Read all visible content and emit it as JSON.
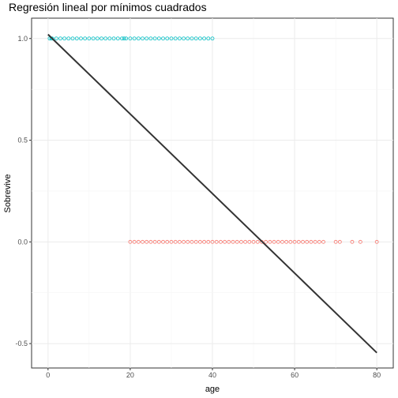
{
  "chart_data": {
    "type": "scatter",
    "title": "Regresión lineal por mínimos cuadrados",
    "xlabel": "age",
    "ylabel": "Sobrevive",
    "xlim": [
      -4,
      84
    ],
    "ylim": [
      -0.62,
      1.1
    ],
    "x_ticks": [
      0,
      20,
      40,
      60,
      80
    ],
    "y_ticks": [
      -0.5,
      0.0,
      0.5,
      1.0
    ],
    "y_tick_labels": [
      "-0.5",
      "0.0",
      "0.5",
      "1.0"
    ],
    "grid": true,
    "legend": "none",
    "series": [
      {
        "color": "#00bfc4",
        "x": [
          0.4,
          0.8,
          1,
          2,
          3,
          4,
          5,
          6,
          7,
          8,
          9,
          10,
          11,
          12,
          13,
          14,
          15,
          16,
          17,
          18,
          18.5,
          19,
          20,
          21,
          22,
          23,
          24,
          25,
          26,
          27,
          28,
          29,
          30,
          31,
          32,
          33,
          34,
          35,
          36,
          37,
          38,
          39,
          40
        ],
        "y": 1
      },
      {
        "color": "#f8766d",
        "x": [
          20,
          21,
          22,
          23,
          24,
          25,
          26,
          27,
          28,
          29,
          30,
          31,
          32,
          33,
          34,
          35,
          36,
          37,
          38,
          39,
          40,
          41,
          42,
          43,
          44,
          45,
          46,
          47,
          48,
          49,
          50,
          51,
          52,
          53,
          54,
          55,
          56,
          57,
          58,
          59,
          60,
          61,
          62,
          63,
          64,
          65,
          66,
          67,
          70,
          71,
          74,
          76,
          80
        ],
        "y": 0
      }
    ],
    "regression_line": {
      "color": "#333333",
      "x": [
        0,
        80
      ],
      "y": [
        1.02,
        -0.545
      ]
    }
  }
}
